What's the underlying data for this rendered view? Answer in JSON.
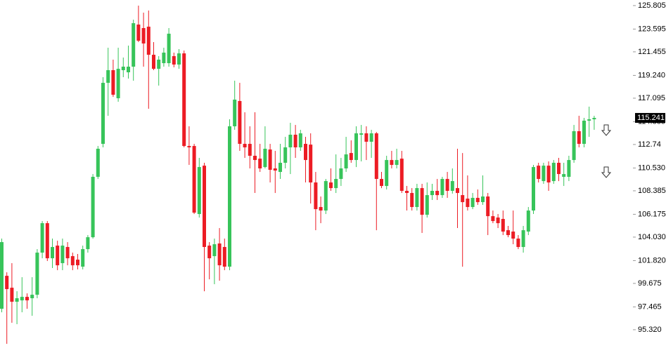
{
  "chart_data": {
    "type": "candlestick",
    "up_color": "#37c45a",
    "down_color": "#ec1c24",
    "ylim": [
      93.6,
      126.33
    ],
    "yticks": [
      {
        "value": 95.32,
        "label": "95.320"
      },
      97.465,
      99.675,
      {
        "value": 101.82,
        "label": "101.820"
      },
      {
        "value": 104.03,
        "label": "104.030"
      },
      106.175,
      108.385,
      {
        "value": 110.53,
        "label": "110.530"
      },
      112.74,
      114.885,
      117.095,
      {
        "value": 119.24,
        "label": "119.240"
      },
      121.455,
      123.595,
      125.805
    ],
    "last_price": 115.241,
    "open": [
      97.29,
      100.39,
      99.27,
      97.95,
      98.08,
      98.41,
      98.28,
      98.61,
      102.57,
      105.34,
      102.04,
      103.23,
      101.58,
      103.1,
      102.24,
      101.91,
      101.25,
      102.9,
      104.02,
      109.7,
      112.8,
      118.54,
      119.73,
      117.09,
      119.73,
      119.53,
      120.06,
      124.02,
      123.69,
      123.82,
      121.18,
      119.86,
      120.39,
      120.39,
      121.05,
      120.26,
      121.31,
      112.6,
      112.6,
      106.2,
      110.75,
      103.23,
      102.24,
      103.43,
      103.1,
      101.25,
      114.45,
      116.83,
      112.8,
      112.8,
      111.68,
      111.41,
      110.62,
      112.27,
      110.49,
      110.16,
      111.02,
      112.47,
      113.66,
      112.47,
      112.8,
      112.73,
      109.17,
      106.86,
      106.53,
      109.17,
      108.64,
      109.5,
      110.49,
      111.94,
      111.28,
      113.66,
      113.79,
      113.0,
      113.79,
      109.5,
      108.84,
      111.28,
      110.82,
      111.41,
      108.38,
      108.18,
      106.86,
      108.64,
      106.13,
      107.98,
      108.38,
      107.98,
      109.5,
      108.38,
      108.64,
      107.98,
      107.65,
      106.86,
      107.72,
      107.32,
      107.85,
      106.0,
      105.87,
      105.74,
      104.68,
      104.55,
      103.89,
      103.1,
      104.55,
      106.53,
      110.75,
      109.3,
      110.75,
      109.3,
      111.02,
      109.7,
      109.7,
      111.28,
      113.99,
      112.8,
      114.98,
      115.11
    ],
    "high": [
      103.89,
      100.72,
      101.58,
      98.94,
      100.26,
      98.74,
      100.26,
      102.9,
      105.54,
      105.54,
      103.89,
      103.69,
      103.89,
      103.56,
      102.57,
      102.44,
      103.23,
      104.22,
      109.96,
      112.6,
      119.07,
      121.84,
      120.72,
      121.84,
      120.92,
      122.04,
      124.48,
      125.8,
      125.14,
      125.34,
      122.37,
      121.05,
      121.84,
      123.69,
      121.38,
      121.71,
      121.58,
      114.45,
      112.8,
      111.48,
      111.02,
      103.56,
      103.89,
      104.88,
      103.89,
      115.11,
      118.74,
      118.54,
      115.77,
      114.45,
      115.77,
      112.8,
      114.45,
      112.8,
      112.14,
      112.8,
      113.46,
      114.78,
      114.58,
      114.12,
      113.46,
      113.79,
      110.16,
      107.85,
      109.5,
      110.49,
      111.81,
      111.48,
      113.46,
      113.13,
      114.45,
      114.58,
      114.45,
      114.12,
      113.92,
      110.16,
      111.68,
      112.14,
      112.34,
      112.14,
      108.84,
      108.64,
      109.04,
      109.04,
      109.17,
      109.04,
      109.5,
      109.7,
      110.16,
      110.49,
      112.34,
      111.94,
      109.83,
      108.18,
      108.51,
      109.83,
      108.18,
      106.53,
      106.2,
      106.53,
      105.08,
      106.53,
      104.22,
      105.08,
      106.86,
      110.82,
      111.02,
      111.02,
      111.15,
      111.28,
      111.48,
      111.02,
      111.68,
      114.58,
      115.44,
      115.24,
      116.3,
      115.44
    ],
    "low": [
      96.96,
      93.99,
      95.97,
      95.84,
      96.96,
      97.29,
      96.63,
      98.28,
      102.04,
      101.78,
      101.12,
      100.92,
      100.92,
      101.38,
      100.92,
      100.99,
      100.99,
      102.57,
      103.89,
      109.5,
      112.47,
      115.44,
      117.22,
      116.76,
      119.07,
      118.94,
      118.74,
      122.37,
      120.06,
      116.1,
      119.73,
      118.28,
      120.06,
      120.06,
      120.0,
      119.86,
      112.47,
      110.82,
      106.2,
      105.87,
      98.94,
      100.06,
      99.6,
      99.93,
      100.92,
      100.92,
      114.12,
      112.14,
      111.48,
      110.49,
      108.18,
      110.16,
      110.49,
      109.17,
      108.18,
      109.5,
      110.49,
      109.96,
      111.48,
      112.14,
      109.17,
      107.19,
      104.68,
      105.34,
      106.2,
      108.38,
      108.18,
      108.84,
      110.16,
      111.02,
      110.62,
      111.15,
      111.28,
      111.48,
      104.68,
      108.64,
      108.51,
      110.49,
      110.49,
      108.18,
      106.53,
      106.53,
      106.53,
      104.42,
      105.87,
      107.52,
      107.52,
      107.72,
      107.72,
      108.12,
      104.88,
      101.25,
      106.53,
      106.66,
      107.06,
      107.06,
      104.22,
      105.34,
      104.88,
      104.22,
      104.02,
      103.36,
      102.9,
      102.57,
      104.22,
      106.2,
      109.17,
      109.04,
      108.38,
      109.04,
      109.3,
      108.84,
      109.3,
      111.02,
      112.47,
      112.47,
      113.46,
      114.12
    ],
    "close": [
      103.56,
      99.14,
      97.95,
      98.28,
      98.41,
      98.08,
      98.61,
      102.57,
      105.34,
      102.04,
      103.1,
      101.38,
      103.23,
      102.04,
      101.38,
      101.38,
      102.9,
      104.02,
      109.7,
      112.34,
      118.54,
      119.73,
      117.42,
      119.86,
      120.06,
      120.06,
      124.15,
      122.5,
      122.24,
      121.18,
      119.86,
      120.72,
      121.38,
      123.16,
      120.26,
      121.31,
      112.6,
      112.47,
      106.33,
      110.62,
      103.1,
      102.04,
      103.36,
      101.38,
      101.25,
      114.45,
      116.96,
      112.8,
      112.47,
      111.68,
      111.28,
      110.49,
      112.34,
      110.36,
      110.29,
      111.02,
      112.47,
      113.66,
      112.47,
      113.79,
      111.28,
      109.17,
      106.66,
      106.53,
      109.3,
      108.64,
      109.5,
      110.49,
      111.81,
      111.28,
      113.79,
      113.79,
      113.0,
      113.79,
      109.5,
      108.84,
      111.28,
      110.82,
      111.28,
      108.38,
      108.18,
      106.86,
      108.64,
      106.13,
      107.98,
      108.38,
      107.98,
      109.5,
      108.38,
      109.3,
      108.18,
      107.32,
      106.86,
      107.72,
      107.32,
      107.85,
      106.0,
      105.54,
      105.34,
      104.55,
      104.22,
      103.89,
      103.1,
      104.68,
      106.53,
      110.62,
      109.5,
      110.75,
      109.17,
      111.02,
      109.96,
      109.96,
      111.28,
      113.99,
      112.8,
      114.98,
      115.11,
      115.24
    ]
  }
}
